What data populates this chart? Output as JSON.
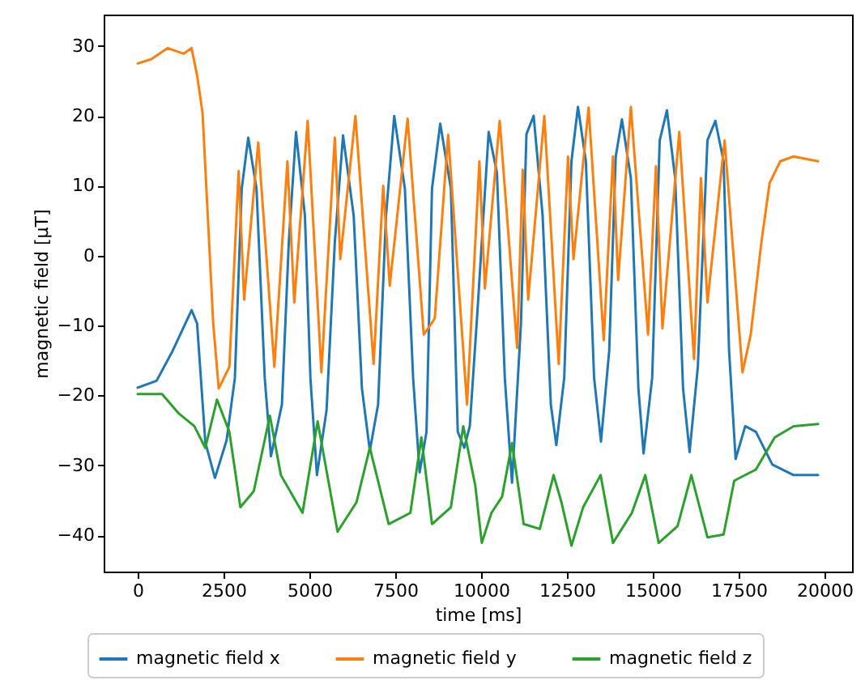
{
  "chart_data": {
    "type": "line",
    "xlabel": "time [ms]",
    "ylabel": "magnetic field [μT]",
    "xlim": [
      -990,
      20800
    ],
    "ylim": [
      -45.2,
      34.5
    ],
    "xticks": [
      0,
      2500,
      5000,
      7500,
      10000,
      12500,
      15000,
      17500,
      20000
    ],
    "yticks": [
      -40,
      -30,
      -20,
      -10,
      0,
      10,
      20,
      30
    ],
    "grid": false,
    "legend": "bottom",
    "series": [
      {
        "name": "magnetic field x",
        "color": "#1f77b4",
        "x": [
          0,
          550,
          1020,
          1570,
          1730,
          1970,
          2250,
          2590,
          2830,
          3030,
          3220,
          3460,
          3700,
          3880,
          4200,
          4400,
          4610,
          4870,
          5030,
          5220,
          5500,
          5740,
          5980,
          6290,
          6530,
          6760,
          7000,
          7230,
          7470,
          7780,
          8020,
          8210,
          8410,
          8570,
          8810,
          9120,
          9320,
          9510,
          9670,
          9910,
          10220,
          10460,
          10690,
          10900,
          11160,
          11320,
          11530,
          11790,
          12030,
          12190,
          12420,
          12630,
          12820,
          13050,
          13290,
          13490,
          13730,
          13920,
          14100,
          14360,
          14580,
          14730,
          14980,
          15200,
          15410,
          15650,
          15880,
          16070,
          16310,
          16590,
          16820,
          17060,
          17220,
          17410,
          17690,
          18000,
          18480,
          19100,
          19810
        ],
        "values": [
          -18.9,
          -17.9,
          -13.6,
          -7.8,
          -9.7,
          -26.7,
          -31.8,
          -26.4,
          -17.5,
          9.6,
          16.9,
          9.6,
          -17.5,
          -28.7,
          -21.3,
          1.9,
          17.7,
          5.7,
          -17.5,
          -31.4,
          -22.1,
          1.9,
          17.2,
          5.7,
          -19.0,
          -27.9,
          -21.3,
          5.7,
          20.0,
          9.6,
          -17.5,
          -31.0,
          -25.2,
          9.6,
          18.9,
          9.6,
          -25.2,
          -27.5,
          -24.4,
          -6.7,
          17.7,
          11.9,
          -17.5,
          -32.5,
          -9.7,
          17.4,
          20.0,
          5.8,
          -21.3,
          -27.1,
          -17.5,
          13.5,
          21.3,
          13.5,
          -17.5,
          -26.6,
          -13.6,
          14.2,
          19.5,
          11.1,
          -19.0,
          -28.3,
          -17.5,
          16.5,
          20.8,
          11.1,
          -19.0,
          -28.1,
          -15.9,
          16.5,
          19.3,
          13.5,
          -13.6,
          -29.1,
          -24.4,
          -25.2,
          -29.9,
          -31.4,
          -31.4
        ]
      },
      {
        "name": "magnetic field y",
        "color": "#ff7f0e",
        "x": [
          0,
          390,
          870,
          1340,
          1570,
          1730,
          1890,
          2040,
          2200,
          2360,
          2670,
          2940,
          3100,
          3510,
          3980,
          4360,
          4560,
          4950,
          5350,
          5740,
          5900,
          6340,
          6870,
          7150,
          7340,
          7860,
          8330,
          8650,
          9040,
          9590,
          9950,
          10110,
          10540,
          11050,
          11210,
          11370,
          11840,
          12260,
          12530,
          12690,
          13130,
          13570,
          13840,
          13990,
          14360,
          14860,
          15090,
          15280,
          15770,
          16200,
          16400,
          16590,
          17090,
          17610,
          17850,
          18160,
          18400,
          18710,
          19100,
          19810
        ],
        "values": [
          27.5,
          28.1,
          29.7,
          28.9,
          29.7,
          25.8,
          20.4,
          5.8,
          -9.7,
          -19.0,
          -15.9,
          12.1,
          -6.3,
          16.2,
          -15.9,
          13.5,
          -6.7,
          19.3,
          -16.7,
          16.9,
          -0.5,
          20.0,
          -15.5,
          10.0,
          -4.3,
          19.6,
          -11.3,
          -9.0,
          17.3,
          -21.3,
          13.5,
          -4.7,
          19.3,
          -13.2,
          12.3,
          -6.3,
          20.0,
          -15.5,
          14.2,
          -0.5,
          21.2,
          -12.1,
          14.2,
          -3.5,
          21.3,
          -11.3,
          12.8,
          -10.4,
          17.7,
          -14.8,
          11.1,
          -6.7,
          16.5,
          -16.7,
          -11.3,
          1.9,
          10.4,
          13.5,
          14.2,
          13.5
        ]
      },
      {
        "name": "magnetic field z",
        "color": "#2ca02c",
        "x": [
          0,
          710,
          1180,
          1650,
          1970,
          2310,
          2670,
          2990,
          3380,
          3850,
          4170,
          4800,
          5240,
          5820,
          6370,
          6760,
          7310,
          7940,
          8260,
          8570,
          9120,
          9480,
          9830,
          10020,
          10300,
          10610,
          10900,
          11240,
          11710,
          12110,
          12340,
          12630,
          12970,
          13480,
          13840,
          14390,
          14780,
          15170,
          15720,
          16120,
          16590,
          17060,
          17370,
          18000,
          18550,
          19100,
          19810
        ],
        "values": [
          -19.8,
          -19.8,
          -22.5,
          -24.4,
          -27.5,
          -20.6,
          -25.2,
          -36.0,
          -33.7,
          -22.9,
          -31.4,
          -36.8,
          -23.7,
          -39.5,
          -35.3,
          -27.5,
          -38.4,
          -36.8,
          -26.0,
          -38.4,
          -36.0,
          -24.4,
          -32.9,
          -41.1,
          -36.8,
          -34.5,
          -26.8,
          -38.4,
          -39.1,
          -31.4,
          -35.3,
          -41.5,
          -36.0,
          -31.4,
          -41.1,
          -36.8,
          -31.4,
          -41.1,
          -38.7,
          -31.4,
          -40.3,
          -39.9,
          -32.2,
          -30.6,
          -26.0,
          -24.4,
          -24.1
        ]
      }
    ]
  }
}
